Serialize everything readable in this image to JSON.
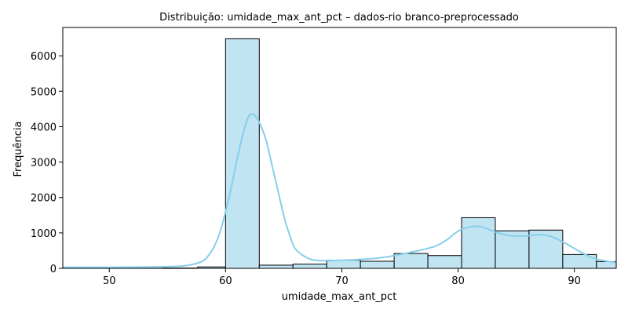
{
  "chart_data": {
    "type": "bar",
    "title": "Distribuição: umidade_max_ant_pct – dados-rio branco-preprocessado",
    "xlabel": "umidade_max_ant_pct",
    "ylabel": "Frequência",
    "xlim": [
      46,
      93.6
    ],
    "ylim": [
      0,
      6800
    ],
    "xticks": [
      50,
      60,
      70,
      80,
      90
    ],
    "yticks": [
      0,
      1000,
      2000,
      3000,
      4000,
      5000,
      6000
    ],
    "grid": false,
    "bins": [
      {
        "x0": 46.0,
        "x1": 48.9,
        "count": 5
      },
      {
        "x0": 48.9,
        "x1": 51.8,
        "count": 5
      },
      {
        "x0": 51.8,
        "x1": 54.7,
        "count": 5
      },
      {
        "x0": 54.7,
        "x1": 57.6,
        "count": 10
      },
      {
        "x0": 57.6,
        "x1": 60.0,
        "count": 40
      },
      {
        "x0": 60.0,
        "x1": 62.9,
        "count": 6480
      },
      {
        "x0": 62.9,
        "x1": 65.8,
        "count": 90
      },
      {
        "x0": 65.8,
        "x1": 68.7,
        "count": 120
      },
      {
        "x0": 68.7,
        "x1": 71.6,
        "count": 230
      },
      {
        "x0": 71.6,
        "x1": 74.5,
        "count": 200
      },
      {
        "x0": 74.5,
        "x1": 77.4,
        "count": 420
      },
      {
        "x0": 77.4,
        "x1": 80.3,
        "count": 360
      },
      {
        "x0": 80.3,
        "x1": 83.2,
        "count": 1430
      },
      {
        "x0": 83.2,
        "x1": 86.1,
        "count": 1060
      },
      {
        "x0": 86.1,
        "x1": 89.0,
        "count": 1080
      },
      {
        "x0": 89.0,
        "x1": 91.9,
        "count": 390
      },
      {
        "x0": 91.9,
        "x1": 93.6,
        "count": 190
      }
    ],
    "kde": {
      "x": [
        46,
        50,
        54,
        56,
        57,
        58,
        58.5,
        59,
        59.5,
        60,
        60.5,
        61,
        61.5,
        62,
        62.5,
        63,
        63.5,
        64,
        64.5,
        65,
        65.5,
        66,
        67,
        68,
        70,
        72,
        74,
        76,
        78,
        79,
        80,
        81,
        82,
        83,
        84,
        85,
        86,
        87,
        88,
        89,
        90,
        91,
        92,
        93.6
      ],
      "y": [
        30,
        30,
        40,
        60,
        100,
        200,
        350,
        600,
        1000,
        1600,
        2300,
        3100,
        3800,
        4300,
        4320,
        4050,
        3600,
        2900,
        2200,
        1500,
        950,
        550,
        300,
        220,
        230,
        260,
        330,
        460,
        620,
        800,
        1050,
        1170,
        1170,
        1050,
        950,
        910,
        920,
        950,
        900,
        750,
        560,
        380,
        250,
        160
      ]
    },
    "colors": {
      "bar_fill": "#c0e4f2",
      "bar_edge": "#000000",
      "kde_line": "#87ceeb"
    }
  }
}
